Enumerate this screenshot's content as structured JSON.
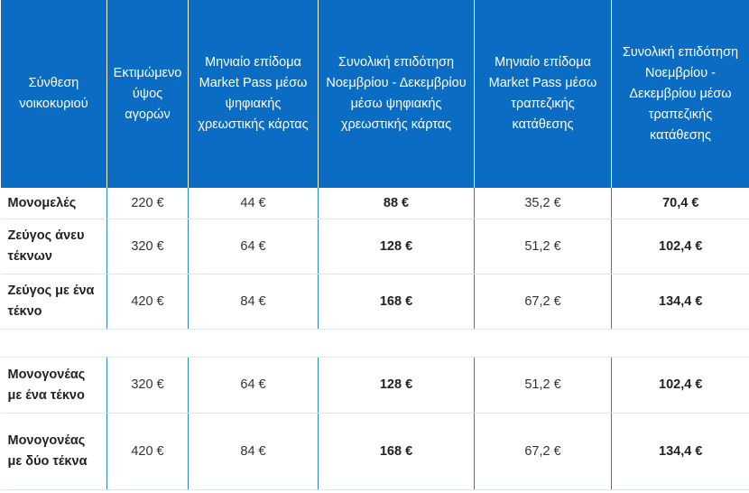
{
  "table": {
    "header": [
      "Σύνθεση νοικοκυριού",
      "Εκτιμώμενο ύψος αγορών",
      "Μηνιαίο επίδομα Market Pass μέσω ψηφιακής χρεωστικής κάρτας",
      "Συνολική επιδότηση Νοεμβρίου - Δεκεμβρίου μέσω ψηφιακής χρεωστικής κάρτας",
      "Μηνιαίο επίδομα Market Pass μέσω τραπεζικής κατάθεσης",
      "Συνολική επιδότηση Νοεμβρίου - Δεκεμβρίου μέσω τραπεζικής κατάθεσης"
    ],
    "groups": [
      [
        [
          "Μονομελές",
          "220 €",
          "44 €",
          "88 €",
          "35,2 €",
          "70,4 €"
        ],
        [
          "Ζεύγος άνευ τέκνων",
          "320 €",
          "64 €",
          "128 €",
          "51,2 €",
          "102,4 €"
        ],
        [
          "Ζεύγος με ένα τέκνο",
          "420 €",
          "84 €",
          "168 €",
          "67,2 €",
          "134,4 €"
        ]
      ],
      [
        [
          "Μονογονέας με ένα τέκνο",
          "320 €",
          "64 €",
          "128 €",
          "51,2 €",
          "102,4 €"
        ],
        [
          "Μονογονέας με δύο τέκνα",
          "420 €",
          "84 €",
          "168 €",
          "67,2 €",
          "134,4 €"
        ]
      ]
    ]
  }
}
